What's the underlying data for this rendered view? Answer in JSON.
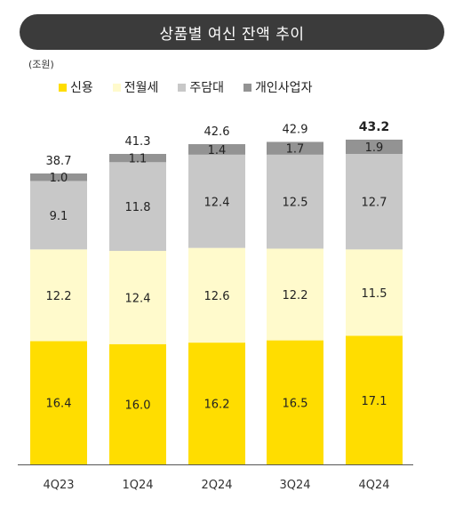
{
  "chart_data": {
    "type": "bar",
    "stacked": true,
    "title": "상품별 여신 잔액 추이",
    "unit": "(조원)",
    "categories": [
      "4Q23",
      "1Q24",
      "2Q24",
      "3Q24",
      "4Q24"
    ],
    "series": [
      {
        "name": "신용",
        "color": "#FFDD00",
        "values": [
          16.4,
          16.0,
          16.2,
          16.5,
          17.1
        ]
      },
      {
        "name": "전월세",
        "color": "#FFFACC",
        "values": [
          12.2,
          12.4,
          12.6,
          12.2,
          11.5
        ]
      },
      {
        "name": "주담대",
        "color": "#C8C8C8",
        "values": [
          9.1,
          11.8,
          12.4,
          12.5,
          12.7
        ]
      },
      {
        "name": "개인사업자",
        "color": "#939393",
        "values": [
          1.0,
          1.1,
          1.4,
          1.7,
          1.9
        ]
      }
    ],
    "totals": [
      "38.7",
      "41.3",
      "42.6",
      "42.9",
      "43.2"
    ],
    "emphasized_total_index": 4,
    "legend_position": "top",
    "grid": false
  }
}
